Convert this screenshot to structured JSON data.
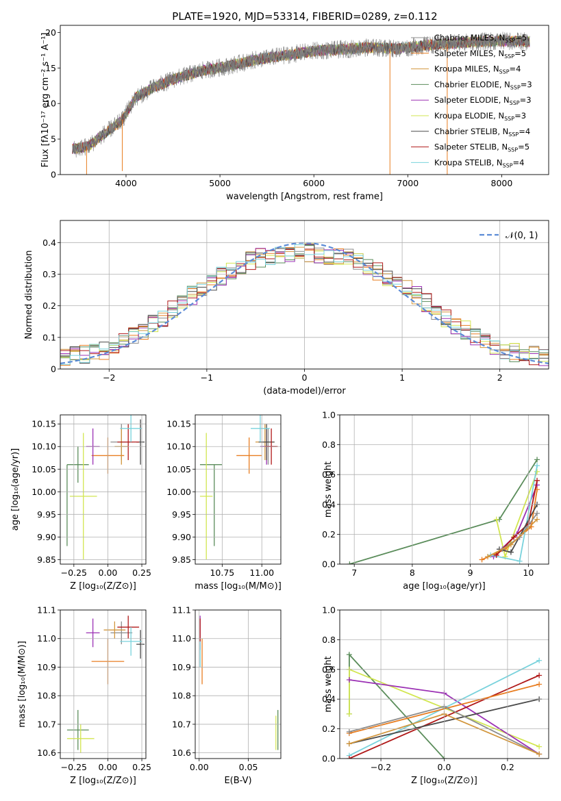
{
  "figure": {
    "title": "PLATE=1920, MJD=53314, FIBERID=0289, z=0.112"
  },
  "colors": {
    "data": "#808080",
    "models": [
      "#8c8c8c",
      "#e87d20",
      "#d2963c",
      "#5a8c5a",
      "#9b30b4",
      "#d2e650",
      "#4a4a4a",
      "#b01818",
      "#78d2dc"
    ],
    "normal": "#5b8bd6"
  },
  "chart_data": [
    {
      "id": "spectrum",
      "type": "line",
      "xlabel": "wavelength [Angstrom, rest frame]",
      "ylabel": "Flux [fλ10⁻¹⁷ erg cm⁻² s⁻¹ A⁻¹]",
      "xlim": [
        3300,
        8500
      ],
      "ylim": [
        0,
        21
      ],
      "xticks": [
        4000,
        5000,
        6000,
        7000,
        8000
      ],
      "yticks": [
        0,
        5,
        10,
        15,
        20
      ],
      "grid": false,
      "legend_position": "right",
      "continuum": {
        "x": [
          3450,
          3600,
          3750,
          3950,
          4100,
          4300,
          4500,
          4800,
          5100,
          5400,
          5700,
          6000,
          6300,
          6600,
          6900,
          7200,
          7600,
          8000,
          8300
        ],
        "y": [
          3.6,
          4.0,
          5.6,
          7.5,
          10.8,
          12.3,
          13.4,
          14.6,
          15.3,
          16.2,
          16.8,
          17.4,
          17.6,
          17.9,
          17.7,
          18.2,
          18.6,
          18.8,
          18.7
        ]
      },
      "dropouts": [
        {
          "x": 3580,
          "y": 0
        },
        {
          "x": 3960,
          "y": 0.5
        },
        {
          "x": 6810,
          "y": 0
        },
        {
          "x": 7420,
          "y": 0
        }
      ],
      "series": [
        {
          "name": "Chabrier MILES, N_SSP=5",
          "label_main": "Chabrier MILES, N",
          "label_sub": "SSP",
          "label_tail": "=5"
        },
        {
          "name": "Salpeter MILES, N_SSP=5",
          "label_main": "Salpeter MILES, N",
          "label_sub": "SSP",
          "label_tail": "=5"
        },
        {
          "name": "Kroupa MILES, N_SSP=4",
          "label_main": "Kroupa MILES, N",
          "label_sub": "SSP",
          "label_tail": "=4"
        },
        {
          "name": "Chabrier ELODIE, N_SSP=3",
          "label_main": "Chabrier ELODIE, N",
          "label_sub": "SSP",
          "label_tail": "=3"
        },
        {
          "name": "Salpeter ELODIE, N_SSP=3",
          "label_main": "Salpeter ELODIE, N",
          "label_sub": "SSP",
          "label_tail": "=3"
        },
        {
          "name": "Kroupa ELODIE, N_SSP=3",
          "label_main": "Kroupa ELODIE, N",
          "label_sub": "SSP",
          "label_tail": "=3"
        },
        {
          "name": "Chabrier STELIB, N_SSP=4",
          "label_main": "Chabrier STELIB, N",
          "label_sub": "SSP",
          "label_tail": "=4"
        },
        {
          "name": "Salpeter STELIB, N_SSP=5",
          "label_main": "Salpeter STELIB, N",
          "label_sub": "SSP",
          "label_tail": "=5"
        },
        {
          "name": "Kroupa STELIB, N_SSP=4",
          "label_main": "Kroupa STELIB, N",
          "label_sub": "SSP",
          "label_tail": "=4"
        }
      ]
    },
    {
      "id": "residuals",
      "type": "histogram",
      "xlabel": "(data-model)/error",
      "ylabel": "Normed distribution",
      "xlim": [
        -2.5,
        2.5
      ],
      "ylim": [
        0,
        0.47
      ],
      "xticks": [
        -2,
        -1,
        0,
        1,
        2
      ],
      "yticks": [
        0.0,
        0.1,
        0.2,
        0.3,
        0.4
      ],
      "grid": true,
      "legend": "𝒩(0, 1)",
      "legend_position": "top-right",
      "bin_width": 0.1,
      "envelope": {
        "x": [
          -2.5,
          -2.0,
          -1.5,
          -1.0,
          -0.5,
          0.0,
          0.5,
          1.0,
          1.5,
          2.0,
          2.5
        ],
        "y": [
          0.035,
          0.06,
          0.15,
          0.27,
          0.35,
          0.37,
          0.35,
          0.27,
          0.15,
          0.06,
          0.035
        ]
      }
    },
    {
      "id": "age-vs-Z",
      "type": "errorbar",
      "xlabel": "Z [log₁₀(Z/Z⊙)]",
      "ylabel": "age  [log₁₀(age/yr)]",
      "xlim": [
        -0.35,
        0.28
      ],
      "ylim": [
        9.84,
        10.17
      ],
      "xticks": [
        "-0.25",
        "0.00",
        "0.25"
      ],
      "xtick_values": [
        -0.25,
        0.0,
        0.25
      ],
      "yticks": [
        "9.85",
        "9.90",
        "9.95",
        "10.00",
        "10.05",
        "10.10",
        "10.15"
      ],
      "ytick_values": [
        9.85,
        9.9,
        9.95,
        10.0,
        10.05,
        10.1,
        10.15
      ],
      "points": [
        {
          "x": 0.1,
          "y": 10.11,
          "xe": 0.08,
          "ye": 0.04,
          "c": 0
        },
        {
          "x": 0.0,
          "y": 10.08,
          "xe": 0.12,
          "ye": 0.04,
          "c": 1
        },
        {
          "x": 0.1,
          "y": 10.1,
          "xe": 0.05,
          "ye": 0.04,
          "c": 2
        },
        {
          "x": -0.22,
          "y": 10.06,
          "xe": 0.08,
          "ye": 0.04,
          "c": 3
        },
        {
          "x": -0.11,
          "y": 10.1,
          "xe": 0.05,
          "ye": 0.04,
          "c": 4
        },
        {
          "x": -0.18,
          "y": 9.99,
          "xe": 0.1,
          "ye": 0.14,
          "c": 5
        },
        {
          "x": 0.24,
          "y": 10.11,
          "xe": 0.03,
          "ye": 0.05,
          "c": 6
        },
        {
          "x": 0.15,
          "y": 10.11,
          "xe": 0.08,
          "ye": 0.04,
          "c": 7
        },
        {
          "x": 0.17,
          "y": 10.14,
          "xe": 0.08,
          "ye": 0.03,
          "c": 8
        },
        {
          "x": -0.3,
          "y": 9.97,
          "xe": 0.0,
          "ye": 0.09,
          "c": 3
        }
      ]
    },
    {
      "id": "age-vs-mass",
      "type": "errorbar",
      "xlabel": "mass [log₁₀(M/M⊙)]",
      "ylabel": "",
      "xlim": [
        10.58,
        11.12
      ],
      "ylim": [
        9.84,
        10.17
      ],
      "xticks": [
        "10.75",
        "11.00"
      ],
      "xtick_values": [
        10.75,
        11.0
      ],
      "yticks": [
        "9.85",
        "9.90",
        "9.95",
        "10.00",
        "10.05",
        "10.10",
        "10.15"
      ],
      "ytick_values": [
        9.85,
        9.9,
        9.95,
        10.0,
        10.05,
        10.1,
        10.15
      ],
      "points": [
        {
          "x": 11.04,
          "y": 10.1,
          "xe": 0.05,
          "ye": 0.04,
          "c": 0
        },
        {
          "x": 10.92,
          "y": 10.08,
          "xe": 0.08,
          "ye": 0.04,
          "c": 1
        },
        {
          "x": 11.02,
          "y": 10.11,
          "xe": 0.06,
          "ye": 0.04,
          "c": 2
        },
        {
          "x": 10.68,
          "y": 10.06,
          "xe": 0.07,
          "ye": 0.0,
          "c": 3
        },
        {
          "x": 11.03,
          "y": 10.1,
          "xe": 0.04,
          "ye": 0.04,
          "c": 4
        },
        {
          "x": 10.65,
          "y": 9.99,
          "xe": 0.04,
          "ye": 0.14,
          "c": 5
        },
        {
          "x": 11.03,
          "y": 10.11,
          "xe": 0.05,
          "ye": 0.04,
          "c": 6
        },
        {
          "x": 11.06,
          "y": 10.1,
          "xe": 0.04,
          "ye": 0.04,
          "c": 7
        },
        {
          "x": 10.99,
          "y": 10.14,
          "xe": 0.06,
          "ye": 0.03,
          "c": 8
        },
        {
          "x": 10.7,
          "y": 9.97,
          "xe": 0.0,
          "ye": 0.09,
          "c": 3
        }
      ]
    },
    {
      "id": "weight-vs-age",
      "type": "line",
      "xlabel": "age  [log₁₀(age/yr)]",
      "ylabel": "mass weight",
      "xlim": [
        6.75,
        10.35
      ],
      "ylim": [
        0,
        1
      ],
      "xticks": [
        7,
        8,
        9,
        10
      ],
      "yticks": [
        "0.0",
        "0.2",
        "0.4",
        "0.6",
        "0.8",
        "1.0"
      ],
      "ytick_values": [
        0,
        0.2,
        0.4,
        0.6,
        0.8,
        1.0
      ],
      "grid": true,
      "series": [
        {
          "c": 3,
          "x": [
            6.92,
            9.5,
            10.15
          ],
          "y": [
            0.0,
            0.3,
            0.7
          ]
        },
        {
          "c": 5,
          "x": [
            9.45,
            9.6,
            10.15
          ],
          "y": [
            0.3,
            0.05,
            0.62
          ]
        },
        {
          "c": 4,
          "x": [
            9.4,
            9.8,
            10.15
          ],
          "y": [
            0.05,
            0.2,
            0.53
          ]
        },
        {
          "c": 1,
          "x": [
            9.2,
            9.6,
            10.05,
            10.15
          ],
          "y": [
            0.03,
            0.1,
            0.25,
            0.5
          ]
        },
        {
          "c": 8,
          "x": [
            9.35,
            9.85,
            10.15
          ],
          "y": [
            0.06,
            0.02,
            0.66
          ]
        },
        {
          "c": 7,
          "x": [
            9.45,
            9.75,
            10.0,
            10.15
          ],
          "y": [
            0.06,
            0.18,
            0.27,
            0.56
          ]
        },
        {
          "c": 6,
          "x": [
            9.5,
            9.7,
            10.15
          ],
          "y": [
            0.1,
            0.08,
            0.4
          ]
        },
        {
          "c": 0,
          "x": [
            9.55,
            9.85,
            10.15
          ],
          "y": [
            0.1,
            0.18,
            0.34
          ]
        },
        {
          "c": 2,
          "x": [
            9.3,
            9.7,
            10.15
          ],
          "y": [
            0.05,
            0.13,
            0.3
          ]
        }
      ]
    },
    {
      "id": "mass-vs-Z",
      "type": "errorbar",
      "xlabel": "Z [log₁₀(Z/Z⊙)]",
      "ylabel": "mass [log₁₀(M/M⊙)]",
      "xlim": [
        -0.35,
        0.28
      ],
      "ylim": [
        10.58,
        11.1
      ],
      "xticks": [
        "-0.25",
        "0.00",
        "0.25"
      ],
      "xtick_values": [
        -0.25,
        0.0,
        0.25
      ],
      "yticks": [
        "10.6",
        "10.7",
        "10.8",
        "10.9",
        "11.0",
        "11.1"
      ],
      "ytick_values": [
        10.6,
        10.7,
        10.8,
        10.9,
        11.0,
        11.1
      ],
      "points": [
        {
          "x": 0.1,
          "y": 11.02,
          "xe": 0.08,
          "ye": 0.04,
          "c": 0
        },
        {
          "x": 0.0,
          "y": 10.92,
          "xe": 0.12,
          "ye": 0.08,
          "c": 1
        },
        {
          "x": 0.05,
          "y": 11.03,
          "xe": 0.08,
          "ye": 0.03,
          "c": 2
        },
        {
          "x": -0.22,
          "y": 10.68,
          "xe": 0.08,
          "ye": 0.07,
          "c": 3
        },
        {
          "x": -0.11,
          "y": 11.02,
          "xe": 0.05,
          "ye": 0.05,
          "c": 4
        },
        {
          "x": -0.2,
          "y": 10.65,
          "xe": 0.1,
          "ye": 0.05,
          "c": 5
        },
        {
          "x": 0.24,
          "y": 10.98,
          "xe": 0.03,
          "ye": 0.05,
          "c": 6
        },
        {
          "x": 0.15,
          "y": 11.04,
          "xe": 0.08,
          "ye": 0.04,
          "c": 7
        },
        {
          "x": 0.17,
          "y": 10.99,
          "xe": 0.08,
          "ye": 0.05,
          "c": 8
        }
      ]
    },
    {
      "id": "mass-vs-ebv",
      "type": "errorbar",
      "xlabel": "E(B-V)",
      "ylabel": "",
      "xlim": [
        -0.004,
        0.083
      ],
      "ylim": [
        10.58,
        11.1
      ],
      "xticks": [
        "0.00",
        "0.05"
      ],
      "xtick_values": [
        0.0,
        0.05
      ],
      "yticks": [
        "10.6",
        "10.7",
        "10.8",
        "10.9",
        "11.0",
        "11.1"
      ],
      "ytick_values": [
        10.6,
        10.7,
        10.8,
        10.9,
        11.0,
        11.1
      ],
      "points": [
        {
          "x": 0.001,
          "y": 11.02,
          "xe": 0.0,
          "ye": 0.06,
          "c": 4
        },
        {
          "x": 0.001,
          "y": 10.95,
          "xe": 0.0,
          "ye": 0.05,
          "c": 8
        },
        {
          "x": 0.003,
          "y": 10.92,
          "xe": 0.0,
          "ye": 0.08,
          "c": 1
        },
        {
          "x": 0.001,
          "y": 11.03,
          "xe": 0.0,
          "ye": 0.04,
          "c": 7
        },
        {
          "x": 0.08,
          "y": 10.68,
          "xe": 0.0,
          "ye": 0.07,
          "c": 3
        },
        {
          "x": 0.078,
          "y": 10.67,
          "xe": 0.0,
          "ye": 0.06,
          "c": 5
        }
      ]
    },
    {
      "id": "weight-vs-Z",
      "type": "line",
      "xlabel": "Z [log₁₀(Z/Z⊙)]",
      "ylabel": "mass weight",
      "xlim": [
        -0.33,
        0.33
      ],
      "ylim": [
        0,
        1
      ],
      "xticks": [
        "−0.2",
        "0.0",
        "0.2"
      ],
      "xtick_values": [
        -0.2,
        0.0,
        0.2
      ],
      "yticks": [
        "0.0",
        "0.2",
        "0.4",
        "0.6",
        "0.8",
        "1.0"
      ],
      "ytick_values": [
        0,
        0.2,
        0.4,
        0.6,
        0.8,
        1.0
      ],
      "grid": true,
      "series": [
        {
          "c": 3,
          "x": [
            -0.3,
            -0.3,
            0.0
          ],
          "y": [
            0.3,
            0.7,
            0.0
          ]
        },
        {
          "c": 5,
          "x": [
            -0.3,
            -0.3,
            0.3
          ],
          "y": [
            0.3,
            0.6,
            0.08
          ]
        },
        {
          "c": 4,
          "x": [
            -0.3,
            0.0,
            0.3
          ],
          "y": [
            0.53,
            0.44,
            0.03
          ]
        },
        {
          "c": 8,
          "x": [
            -0.3,
            0.3
          ],
          "y": [
            0.02,
            0.66
          ]
        },
        {
          "c": 7,
          "x": [
            -0.3,
            0.3
          ],
          "y": [
            0.0,
            0.56
          ]
        },
        {
          "c": 1,
          "x": [
            -0.3,
            0.3
          ],
          "y": [
            0.17,
            0.5
          ]
        },
        {
          "c": 6,
          "x": [
            -0.3,
            0.3
          ],
          "y": [
            0.1,
            0.4
          ]
        },
        {
          "c": 0,
          "x": [
            -0.3,
            0.0,
            0.3
          ],
          "y": [
            0.18,
            0.35,
            0.03
          ]
        },
        {
          "c": 2,
          "x": [
            -0.3,
            0.0,
            0.3
          ],
          "y": [
            0.1,
            0.3,
            0.03
          ]
        }
      ]
    }
  ]
}
